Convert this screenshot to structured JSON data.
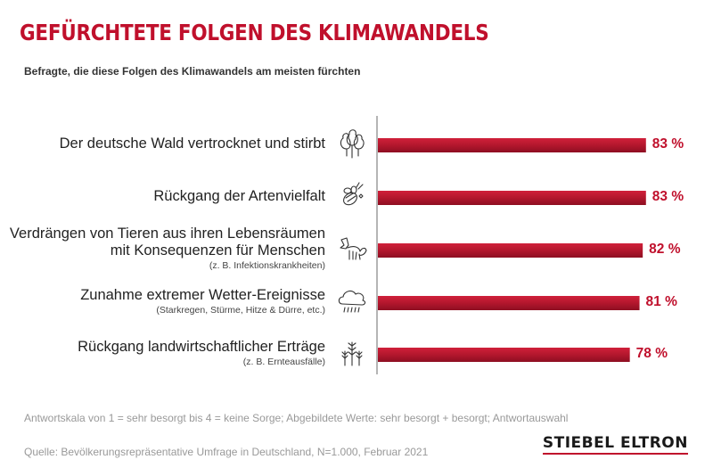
{
  "header": {
    "title": "GEFÜRCHTETE FOLGEN DES KLIMAWANDELS",
    "subtitle": "Befragte, die diese Folgen des Klimawandels am meisten fürchten"
  },
  "colors": {
    "accent": "#c0102c",
    "bar": "#b3172d",
    "axis": "#b5b5b5",
    "muted": "#999999"
  },
  "chart_data": {
    "type": "bar",
    "orientation": "horizontal",
    "unit": "%",
    "title": "GEFÜRCHTETE FOLGEN DES KLIMAWANDELS",
    "subtitle": "Befragte, die diese Folgen des Klimawandels am meisten fürchten",
    "categories": [
      "Der deutsche Wald vertrocknet und stirbt",
      "Rückgang der Artenvielfalt",
      "Verdrängen von Tieren aus ihren Lebensräumen mit Konsequenzen für Menschen",
      "Zunahme extremer Wetter-Ereignisse",
      "Rückgang landwirtschaftlicher Erträge"
    ],
    "values": [
      83,
      83,
      82,
      81,
      78
    ],
    "items": [
      {
        "label_lines": [
          "Der deutsche Wald vertrocknet und stirbt"
        ],
        "note": "",
        "value": 83,
        "value_label": "83 %",
        "icon": "trees-icon"
      },
      {
        "label_lines": [
          "Rückgang der Artenvielfalt"
        ],
        "note": "",
        "value": 83,
        "value_label": "83 %",
        "icon": "bee-icon"
      },
      {
        "label_lines": [
          "Verdrängen von Tieren aus ihren Lebensräumen",
          "mit Konsequenzen für Menschen"
        ],
        "note": "(z. B. Infektionskrankheiten)",
        "value": 82,
        "value_label": "82 %",
        "icon": "fox-icon"
      },
      {
        "label_lines": [
          "Zunahme extremer Wetter-Ereignisse"
        ],
        "note": "(Starkregen, Stürme, Hitze & Dürre, etc.)",
        "value": 81,
        "value_label": "81 %",
        "icon": "rain-cloud-icon"
      },
      {
        "label_lines": [
          "Rückgang landwirtschaftlicher Erträge"
        ],
        "note": "(z. B. Ernteausfälle)",
        "value": 78,
        "value_label": "78 %",
        "icon": "wheat-icon"
      }
    ],
    "grid": false,
    "legend": "none"
  },
  "footer": {
    "scale_note": "Antwortskala von 1 = sehr besorgt bis 4 = keine Sorge; Abgebildete Werte: sehr besorgt + besorgt; Antwortauswahl",
    "source": "Quelle: Bevölkerungsrepräsentative Umfrage in Deutschland, N=1.000, Februar 2021",
    "brand": "STIEBEL ELTRON"
  }
}
